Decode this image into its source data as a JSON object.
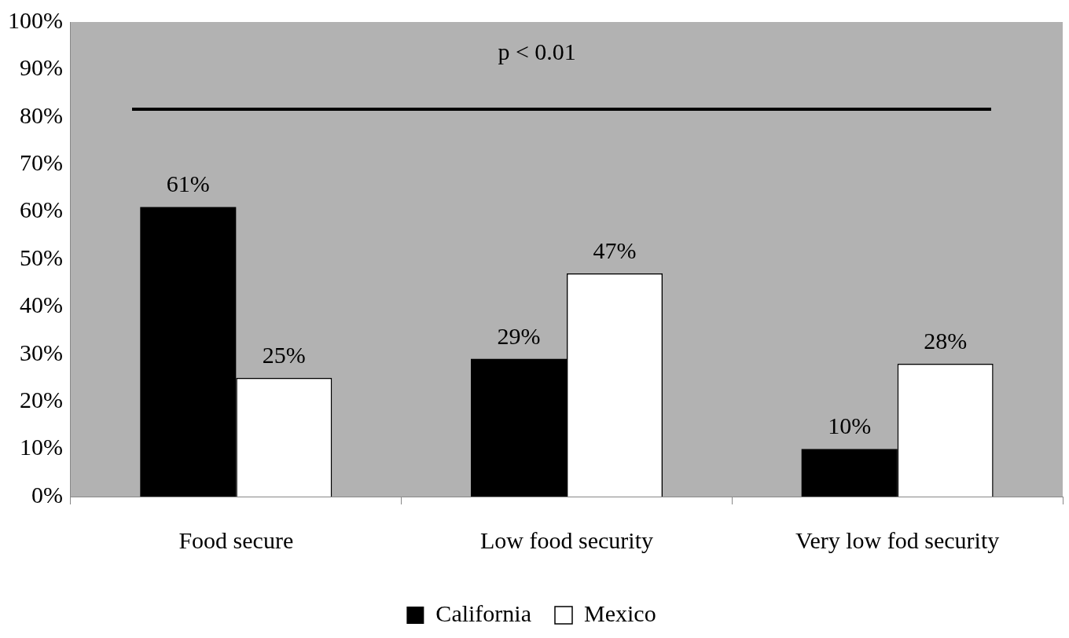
{
  "chart_data": {
    "type": "bar",
    "categories": [
      "Food secure",
      "Low food security",
      "Very low fod security"
    ],
    "series": [
      {
        "name": "California",
        "color": "#000000",
        "values": [
          61,
          29,
          10
        ],
        "value_labels": [
          "61%",
          "29%",
          "10%"
        ]
      },
      {
        "name": "Mexico",
        "color": "#ffffff",
        "values": [
          25,
          47,
          28
        ],
        "value_labels": [
          "25%",
          "47%",
          "28%"
        ]
      }
    ],
    "ylim": [
      0,
      100
    ],
    "yticks": [
      {
        "value": 0,
        "label": "0%"
      },
      {
        "value": 10,
        "label": "10%"
      },
      {
        "value": 20,
        "label": "20%"
      },
      {
        "value": 30,
        "label": "30%"
      },
      {
        "value": 40,
        "label": "40%"
      },
      {
        "value": 50,
        "label": "50%"
      },
      {
        "value": 60,
        "label": "60%"
      },
      {
        "value": 70,
        "label": "70%"
      },
      {
        "value": 80,
        "label": "80%"
      },
      {
        "value": 90,
        "label": "90%"
      },
      {
        "value": 100,
        "label": "100%"
      }
    ],
    "annotations": [
      "p < 0.01"
    ],
    "grid": false,
    "legend": "bottom"
  }
}
